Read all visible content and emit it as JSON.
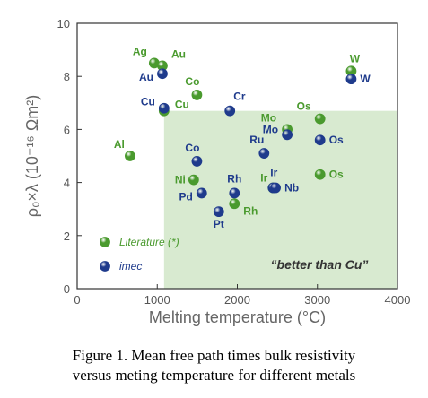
{
  "chart_data": {
    "type": "scatter",
    "xlabel": "Melting temperature (°C)",
    "ylabel": "ρ₀×λ (10⁻¹⁶ Ωm²)",
    "xlim": [
      0,
      4000
    ],
    "ylim": [
      0,
      10
    ],
    "xticks": [
      0,
      1000,
      2000,
      3000,
      4000
    ],
    "yticks": [
      0,
      2,
      4,
      6,
      8,
      10
    ],
    "grid": false,
    "legend_position": "bottom-left",
    "region": {
      "label": "“better than Cu”",
      "x": [
        1085,
        4000
      ],
      "y": [
        0,
        6.7
      ],
      "color": "#d8ead0"
    },
    "series": [
      {
        "name": "Literature (*)",
        "color": "#4a9a2e",
        "points": [
          {
            "label": "Ag",
            "x": 962,
            "y": 8.5
          },
          {
            "label": "Au",
            "x": 1064,
            "y": 8.4
          },
          {
            "label": "Cu",
            "x": 1085,
            "y": 6.7
          },
          {
            "label": "Al",
            "x": 660,
            "y": 5.0
          },
          {
            "label": "Co",
            "x": 1495,
            "y": 7.3
          },
          {
            "label": "Ni",
            "x": 1455,
            "y": 4.1
          },
          {
            "label": "Rh",
            "x": 1964,
            "y": 3.2
          },
          {
            "label": "Ir",
            "x": 2446,
            "y": 3.8
          },
          {
            "label": "Mo",
            "x": 2623,
            "y": 6.0
          },
          {
            "label": "Os",
            "x": 3033,
            "y": 6.4
          },
          {
            "label": "Os",
            "x": 3033,
            "y": 4.3
          },
          {
            "label": "W",
            "x": 3422,
            "y": 8.2
          }
        ]
      },
      {
        "name": "imec",
        "color": "#1f3b8c",
        "points": [
          {
            "label": "Au",
            "x": 1064,
            "y": 8.1
          },
          {
            "label": "Cu",
            "x": 1085,
            "y": 6.8
          },
          {
            "label": "Cr",
            "x": 1907,
            "y": 6.7
          },
          {
            "label": "Co",
            "x": 1495,
            "y": 4.8
          },
          {
            "label": "Pd",
            "x": 1555,
            "y": 3.6
          },
          {
            "label": "Pt",
            "x": 1768,
            "y": 2.9
          },
          {
            "label": "Rh",
            "x": 1964,
            "y": 3.6
          },
          {
            "label": "Ru",
            "x": 2334,
            "y": 5.1
          },
          {
            "label": "Mo",
            "x": 2623,
            "y": 5.8
          },
          {
            "label": "Ir",
            "x": 2446,
            "y": 3.8
          },
          {
            "label": "Nb",
            "x": 2477,
            "y": 3.8
          },
          {
            "label": "Os",
            "x": 3033,
            "y": 5.6
          },
          {
            "label": "W",
            "x": 3422,
            "y": 7.9
          }
        ]
      }
    ]
  },
  "caption": {
    "line1": "Figure 1.   Mean free path times bulk resistivity",
    "line2": "versus meting temperature for different metals"
  }
}
